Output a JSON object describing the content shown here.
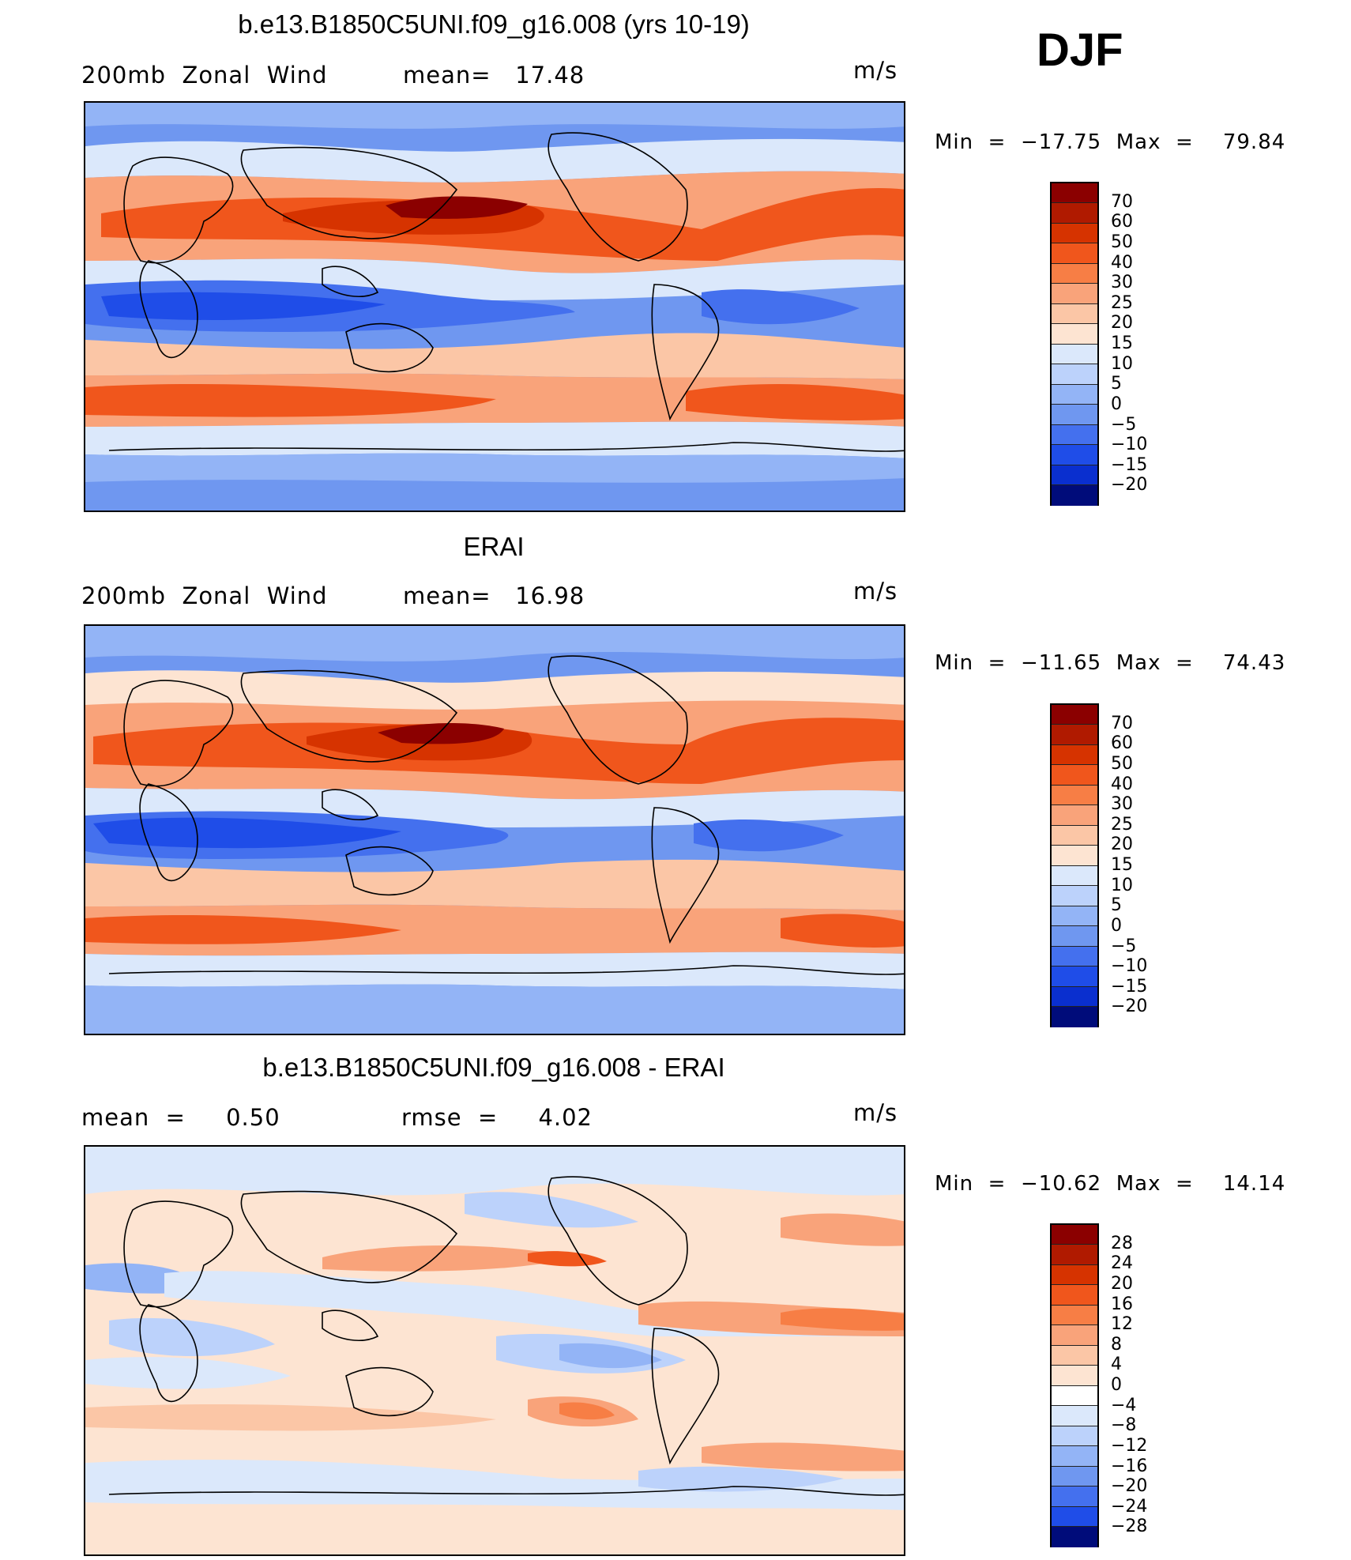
{
  "season": "DJF",
  "panels": [
    {
      "title": "b.e13.B1850C5UNI.f09_g16.008 (yrs 10-19)",
      "left_label": "200mb  Zonal  Wind",
      "mid_label": "mean=   17.48",
      "units": "m/s",
      "min_label": "Min  =  −17.75  Max  =    79.84",
      "levels": [
        "70",
        "60",
        "50",
        "40",
        "30",
        "25",
        "20",
        "15",
        "10",
        "5",
        "0",
        "−5",
        "−10",
        "−15",
        "−20"
      ],
      "colors": [
        "#8b0000",
        "#b01a00",
        "#d63300",
        "#f0561c",
        "#f77e45",
        "#f9a37a",
        "#fbc6a6",
        "#fde4d2",
        "#dbe8fb",
        "#bcd2fb",
        "#93b4f6",
        "#6f97f0",
        "#4470ee",
        "#1f4de8",
        "#0a2fcf",
        "#02169f",
        "#000c7a"
      ]
    },
    {
      "title": "ERAI",
      "left_label": "200mb  Zonal  Wind",
      "mid_label": "mean=   16.98",
      "units": "m/s",
      "min_label": "Min  =  −11.65  Max  =    74.43",
      "levels": [
        "70",
        "60",
        "50",
        "40",
        "30",
        "25",
        "20",
        "15",
        "10",
        "5",
        "0",
        "−5",
        "−10",
        "−15",
        "−20"
      ],
      "colors": [
        "#8b0000",
        "#b01a00",
        "#d63300",
        "#f0561c",
        "#f77e45",
        "#f9a37a",
        "#fbc6a6",
        "#fde4d2",
        "#dbe8fb",
        "#bcd2fb",
        "#93b4f6",
        "#6f97f0",
        "#4470ee",
        "#1f4de8",
        "#0a2fcf",
        "#02169f",
        "#000c7a"
      ]
    },
    {
      "title": "b.e13.B1850C5UNI.f09_g16.008 - ERAI",
      "left_label": "mean  =     0.50",
      "mid_label": "rmse  =     4.02",
      "units": "m/s",
      "min_label": "Min  =  −10.62  Max  =    14.14",
      "levels": [
        "28",
        "24",
        "20",
        "16",
        "12",
        "8",
        "4",
        "0",
        "−4",
        "−8",
        "−12",
        "−16",
        "−20",
        "−24",
        "−28"
      ],
      "colors": [
        "#8b0000",
        "#b01a00",
        "#d63300",
        "#f0561c",
        "#f77e45",
        "#f9a37a",
        "#fbc6a6",
        "#fde4d2",
        "#ffffff",
        "#dbe8fb",
        "#bcd2fb",
        "#93b4f6",
        "#6f97f0",
        "#4470ee",
        "#1f4de8",
        "#0a2fcf",
        "#000c7a"
      ]
    }
  ]
}
